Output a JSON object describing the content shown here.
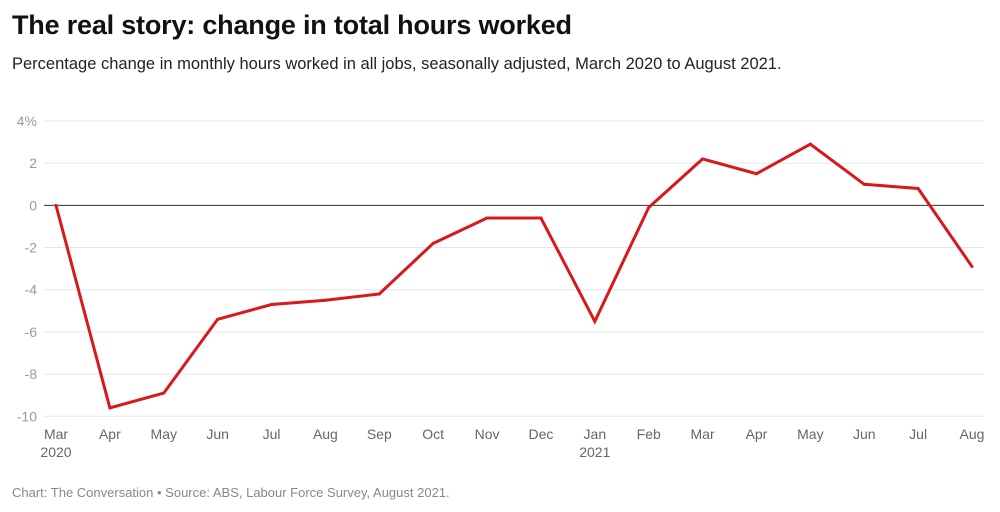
{
  "title": "The real story: change in total hours worked",
  "subtitle": "Percentage change in monthly hours worked in all jobs, seasonally adjusted, March 2020 to August 2021.",
  "footer": "Chart: The Conversation • Source: ABS, Labour Force Survey, August 2021.",
  "chart_data": {
    "type": "line",
    "title": "The real story: change in total hours worked",
    "xlabel": "",
    "ylabel": "",
    "ylim": [
      -10,
      4
    ],
    "y_ticks": [
      "4%",
      "2",
      "0",
      "-2",
      "-4",
      "-6",
      "-8",
      "-10"
    ],
    "y_tick_values": [
      4,
      2,
      0,
      -2,
      -4,
      -6,
      -8,
      -10
    ],
    "grid": true,
    "categories": [
      "Mar",
      "Apr",
      "May",
      "Jun",
      "Jul",
      "Aug",
      "Sep",
      "Oct",
      "Nov",
      "Dec",
      "Jan",
      "Feb",
      "Mar",
      "Apr",
      "May",
      "Jun",
      "Jul",
      "Aug"
    ],
    "category_sublabels": {
      "0": "2020",
      "10": "2021"
    },
    "series": [
      {
        "color": "#d7191c",
        "values": [
          0,
          -9.6,
          -8.9,
          -5.4,
          -4.7,
          -4.5,
          -4.2,
          -1.8,
          -0.6,
          -0.6,
          -5.5,
          -0.1,
          2.2,
          1.5,
          2.9,
          1.0,
          0.8,
          -2.9
        ]
      }
    ]
  }
}
